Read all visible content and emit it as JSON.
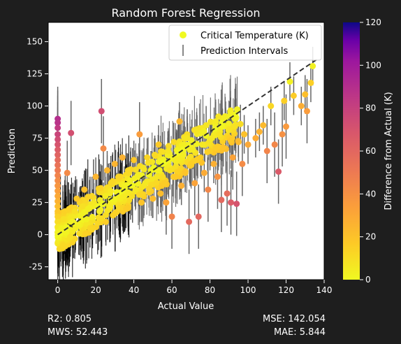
{
  "chart_data": {
    "type": "scatter",
    "title": "Random Forest Regression",
    "xlabel": "Actual Value",
    "ylabel": "Prediction",
    "xlim": [
      -5,
      140
    ],
    "ylim": [
      -35,
      165
    ],
    "xticks": [
      0,
      20,
      40,
      60,
      80,
      100,
      120,
      140
    ],
    "yticks": [
      -25,
      0,
      25,
      50,
      75,
      100,
      125,
      150
    ],
    "legend": {
      "location": "top-right",
      "entries": [
        "Critical Temperature (K)",
        "Prediction Intervals"
      ]
    },
    "colorbar": {
      "label": "Difference from Actual (K)",
      "range": [
        0,
        120
      ],
      "ticks": [
        0,
        20,
        40,
        60,
        80,
        100,
        120
      ],
      "colormap": "plasma_r"
    },
    "reference_line": {
      "type": "y=x",
      "style": "dashed",
      "color": "#333333"
    },
    "series": [
      {
        "name": "Critical Temperature (K)",
        "points": [
          {
            "x": 0,
            "y": 90,
            "diff": 90
          },
          {
            "x": 0,
            "y": 87,
            "diff": 87
          },
          {
            "x": 0,
            "y": 83,
            "diff": 83
          },
          {
            "x": 0,
            "y": 78,
            "diff": 78
          },
          {
            "x": 0,
            "y": 74,
            "diff": 74
          },
          {
            "x": 0,
            "y": 70,
            "diff": 70
          },
          {
            "x": 0,
            "y": 66,
            "diff": 66
          },
          {
            "x": 0,
            "y": 62,
            "diff": 62
          },
          {
            "x": 0,
            "y": 58,
            "diff": 58
          },
          {
            "x": 0,
            "y": 54,
            "diff": 54
          },
          {
            "x": 0,
            "y": 50,
            "diff": 50
          },
          {
            "x": 0,
            "y": 46,
            "diff": 46
          },
          {
            "x": 0,
            "y": 42,
            "diff": 42
          },
          {
            "x": 0,
            "y": 38,
            "diff": 38
          },
          {
            "x": 0,
            "y": 34,
            "diff": 34
          },
          {
            "x": 0,
            "y": 30,
            "diff": 30
          },
          {
            "x": 0,
            "y": 26,
            "diff": 26
          },
          {
            "x": 0,
            "y": 22,
            "diff": 22
          },
          {
            "x": 0,
            "y": 18,
            "diff": 18
          },
          {
            "x": 0,
            "y": 14,
            "diff": 14
          },
          {
            "x": 0,
            "y": 10,
            "diff": 10
          },
          {
            "x": 0,
            "y": 6,
            "diff": 6
          },
          {
            "x": 0,
            "y": 2,
            "diff": 2
          },
          {
            "x": 2,
            "y": 5,
            "diff": 3
          },
          {
            "x": 3,
            "y": 12,
            "diff": 9
          },
          {
            "x": 4,
            "y": 2,
            "diff": 2
          },
          {
            "x": 5,
            "y": 48,
            "diff": 43
          },
          {
            "x": 6,
            "y": 20,
            "diff": 14
          },
          {
            "x": 7,
            "y": 79,
            "diff": 72
          },
          {
            "x": 8,
            "y": 10,
            "diff": 2
          },
          {
            "x": 9,
            "y": 18,
            "diff": 9
          },
          {
            "x": 10,
            "y": 28,
            "diff": 18
          },
          {
            "x": 11,
            "y": 8,
            "diff": 3
          },
          {
            "x": 12,
            "y": 15,
            "diff": 3
          },
          {
            "x": 13,
            "y": 22,
            "diff": 9
          },
          {
            "x": 14,
            "y": 35,
            "diff": 21
          },
          {
            "x": 15,
            "y": 12,
            "diff": 3
          },
          {
            "x": 16,
            "y": 20,
            "diff": 4
          },
          {
            "x": 17,
            "y": 5,
            "diff": 12
          },
          {
            "x": 18,
            "y": 30,
            "diff": 12
          },
          {
            "x": 19,
            "y": 25,
            "diff": 6
          },
          {
            "x": 20,
            "y": 45,
            "diff": 25
          },
          {
            "x": 22,
            "y": 18,
            "diff": 4
          },
          {
            "x": 23,
            "y": 96,
            "diff": 73
          },
          {
            "x": 24,
            "y": 67,
            "diff": 43
          },
          {
            "x": 25,
            "y": 30,
            "diff": 5
          },
          {
            "x": 26,
            "y": 50,
            "diff": 24
          },
          {
            "x": 27,
            "y": 22,
            "diff": 5
          },
          {
            "x": 28,
            "y": 40,
            "diff": 12
          },
          {
            "x": 29,
            "y": 15,
            "diff": 14
          },
          {
            "x": 30,
            "y": 55,
            "diff": 25
          },
          {
            "x": 31,
            "y": 33,
            "diff": 2
          },
          {
            "x": 32,
            "y": 45,
            "diff": 13
          },
          {
            "x": 33,
            "y": 28,
            "diff": 5
          },
          {
            "x": 34,
            "y": 60,
            "diff": 26
          },
          {
            "x": 35,
            "y": 38,
            "diff": 3
          },
          {
            "x": 36,
            "y": 20,
            "diff": 16
          },
          {
            "x": 37,
            "y": 48,
            "diff": 11
          },
          {
            "x": 38,
            "y": 42,
            "diff": 4
          },
          {
            "x": 39,
            "y": 30,
            "diff": 9
          },
          {
            "x": 40,
            "y": 58,
            "diff": 18
          },
          {
            "x": 41,
            "y": 35,
            "diff": 6
          },
          {
            "x": 42,
            "y": 46,
            "diff": 4
          },
          {
            "x": 43,
            "y": 78,
            "diff": 35
          },
          {
            "x": 44,
            "y": 25,
            "diff": 19
          },
          {
            "x": 45,
            "y": 52,
            "diff": 7
          },
          {
            "x": 46,
            "y": 40,
            "diff": 6
          },
          {
            "x": 47,
            "y": 60,
            "diff": 13
          },
          {
            "x": 48,
            "y": 36,
            "diff": 12
          },
          {
            "x": 49,
            "y": 50,
            "diff": 1
          },
          {
            "x": 50,
            "y": 28,
            "diff": 22
          },
          {
            "x": 51,
            "y": 62,
            "diff": 11
          },
          {
            "x": 52,
            "y": 45,
            "diff": 7
          },
          {
            "x": 53,
            "y": 70,
            "diff": 17
          },
          {
            "x": 54,
            "y": 32,
            "diff": 22
          },
          {
            "x": 55,
            "y": 55,
            "diff": 0
          },
          {
            "x": 56,
            "y": 40,
            "diff": 16
          },
          {
            "x": 57,
            "y": 25,
            "diff": 32
          },
          {
            "x": 58,
            "y": 65,
            "diff": 7
          },
          {
            "x": 59,
            "y": 50,
            "diff": 9
          },
          {
            "x": 60,
            "y": 14,
            "diff": 46
          },
          {
            "x": 61,
            "y": 72,
            "diff": 11
          },
          {
            "x": 62,
            "y": 45,
            "diff": 17
          },
          {
            "x": 63,
            "y": 58,
            "diff": 5
          },
          {
            "x": 64,
            "y": 88,
            "diff": 24
          },
          {
            "x": 65,
            "y": 38,
            "diff": 27
          },
          {
            "x": 66,
            "y": 62,
            "diff": 4
          },
          {
            "x": 67,
            "y": 48,
            "diff": 19
          },
          {
            "x": 68,
            "y": 75,
            "diff": 7
          },
          {
            "x": 69,
            "y": 10,
            "diff": 59
          },
          {
            "x": 70,
            "y": 55,
            "diff": 15
          },
          {
            "x": 71,
            "y": 66,
            "diff": 5
          },
          {
            "x": 72,
            "y": 40,
            "diff": 32
          },
          {
            "x": 73,
            "y": 80,
            "diff": 7
          },
          {
            "x": 74,
            "y": 14,
            "diff": 60
          },
          {
            "x": 75,
            "y": 60,
            "diff": 15
          },
          {
            "x": 76,
            "y": 70,
            "diff": 6
          },
          {
            "x": 77,
            "y": 48,
            "diff": 29
          },
          {
            "x": 78,
            "y": 85,
            "diff": 7
          },
          {
            "x": 79,
            "y": 35,
            "diff": 44
          },
          {
            "x": 80,
            "y": 65,
            "diff": 15
          },
          {
            "x": 81,
            "y": 75,
            "diff": 6
          },
          {
            "x": 82,
            "y": 55,
            "diff": 27
          },
          {
            "x": 83,
            "y": 88,
            "diff": 5
          },
          {
            "x": 84,
            "y": 45,
            "diff": 39
          },
          {
            "x": 85,
            "y": 78,
            "diff": 7
          },
          {
            "x": 86,
            "y": 27,
            "diff": 59
          },
          {
            "x": 87,
            "y": 68,
            "diff": 19
          },
          {
            "x": 88,
            "y": 92,
            "diff": 4
          },
          {
            "x": 89,
            "y": 32,
            "diff": 57
          },
          {
            "x": 90,
            "y": 82,
            "diff": 8
          },
          {
            "x": 91,
            "y": 25,
            "diff": 66
          },
          {
            "x": 92,
            "y": 60,
            "diff": 32
          },
          {
            "x": 93,
            "y": 90,
            "diff": 3
          },
          {
            "x": 94,
            "y": 24,
            "diff": 70
          },
          {
            "x": 95,
            "y": 72,
            "diff": 23
          },
          {
            "x": 96,
            "y": 86,
            "diff": 10
          },
          {
            "x": 97,
            "y": 55,
            "diff": 42
          },
          {
            "x": 98,
            "y": 78,
            "diff": 20
          },
          {
            "x": 100,
            "y": 70,
            "diff": 30
          },
          {
            "x": 104,
            "y": 75,
            "diff": 29
          },
          {
            "x": 106,
            "y": 80,
            "diff": 26
          },
          {
            "x": 108,
            "y": 85,
            "diff": 23
          },
          {
            "x": 110,
            "y": 65,
            "diff": 45
          },
          {
            "x": 112,
            "y": 100,
            "diff": 12
          },
          {
            "x": 114,
            "y": 70,
            "diff": 44
          },
          {
            "x": 116,
            "y": 49,
            "diff": 67
          },
          {
            "x": 118,
            "y": 78,
            "diff": 40
          },
          {
            "x": 119,
            "y": 104,
            "diff": 15
          },
          {
            "x": 120,
            "y": 84,
            "diff": 36
          },
          {
            "x": 122,
            "y": 119,
            "diff": 3
          },
          {
            "x": 124,
            "y": 108,
            "diff": 16
          },
          {
            "x": 128,
            "y": 100,
            "diff": 28
          },
          {
            "x": 130,
            "y": 109,
            "diff": 21
          },
          {
            "x": 131,
            "y": 96,
            "diff": 35
          },
          {
            "x": 133,
            "y": 118,
            "diff": 15
          },
          {
            "x": 134,
            "y": 131,
            "diff": 3
          }
        ]
      },
      {
        "name": "Prediction Intervals",
        "style": "vertical error bars",
        "color": "#888888"
      }
    ]
  },
  "stats": {
    "r2": "R2: 0.805",
    "mws": "MWS: 52.443",
    "mse": "MSE: 142.054",
    "mae": "MAE: 5.844"
  }
}
